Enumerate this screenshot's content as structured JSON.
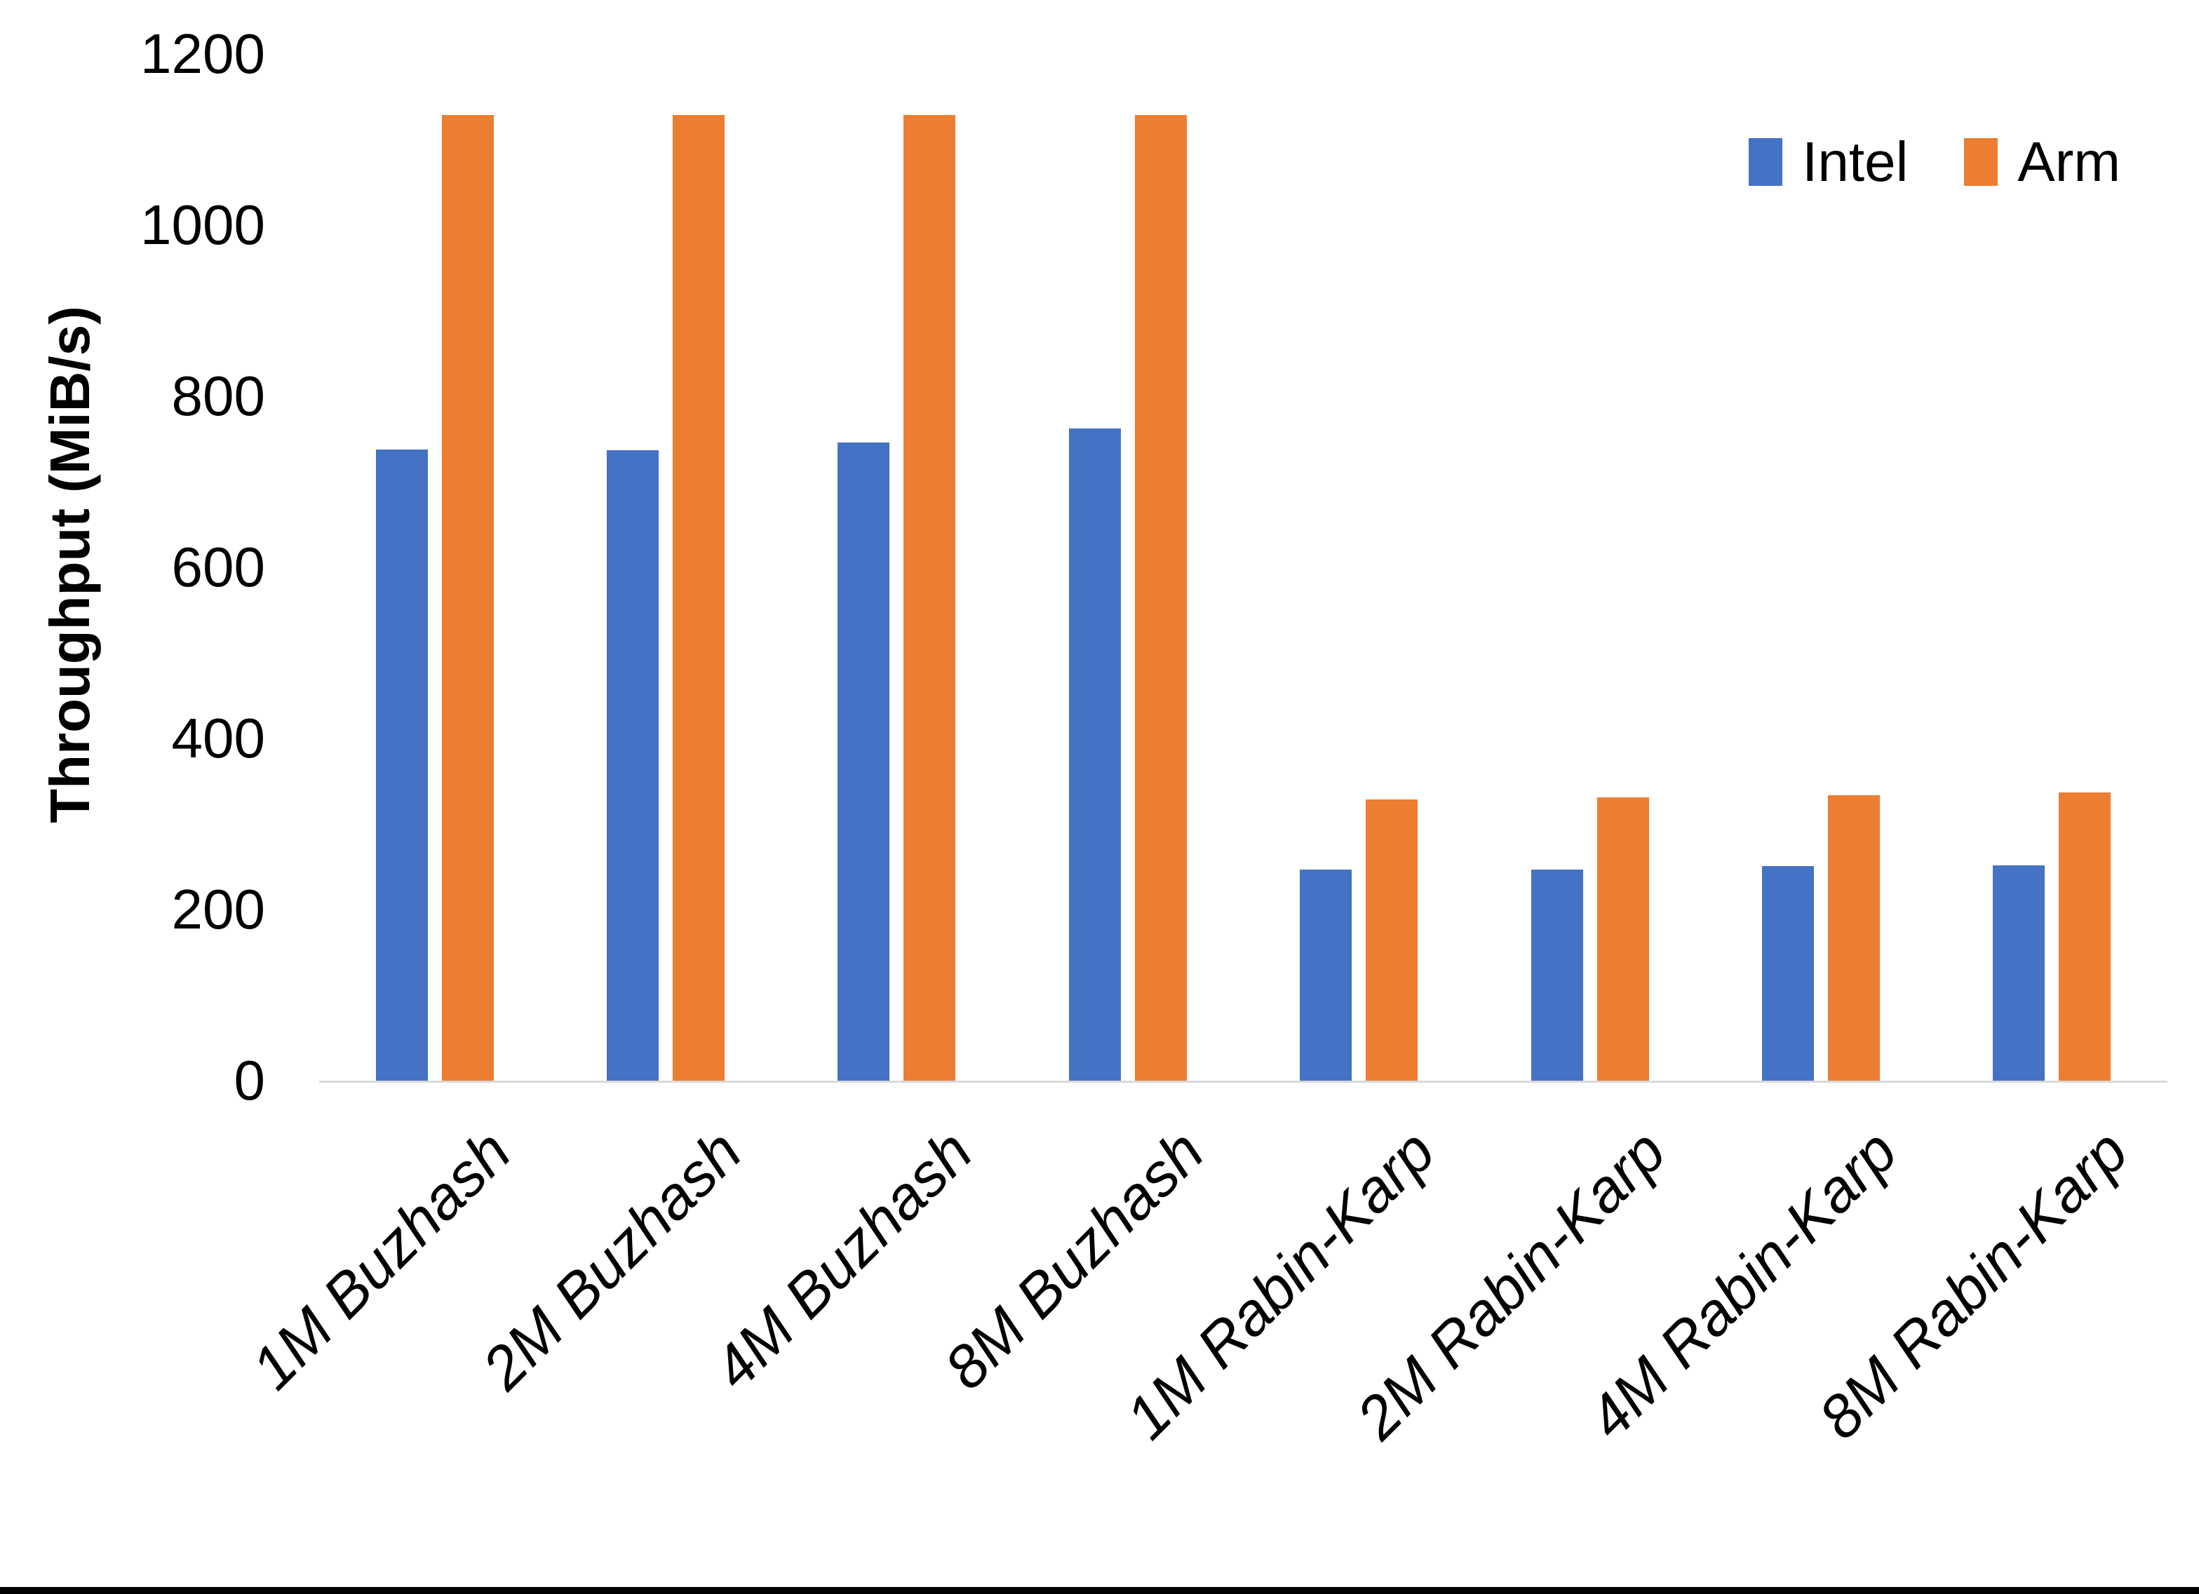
{
  "chart_data": {
    "type": "bar",
    "title": "",
    "ylabel": "Throughput (MiB/s)",
    "xlabel": "",
    "categories": [
      "1M Buzhash",
      "2M Buzhash",
      "4M Buzhash",
      "8M Buzhash",
      "1M Rabin-Karp",
      "2M Rabin-Karp",
      "4M Rabin-Karp",
      "8M Rabin-Karp"
    ],
    "series": [
      {
        "name": "Intel",
        "color": "#4472C4",
        "values": [
          738,
          737,
          746,
          762,
          247,
          247,
          251,
          252
        ]
      },
      {
        "name": "Arm",
        "color": "#ED7D31",
        "values": [
          1129,
          1129,
          1129,
          1129,
          329,
          331,
          334,
          337
        ]
      }
    ],
    "ylim": [
      0,
      1200
    ],
    "yticks": [
      0,
      200,
      400,
      600,
      800,
      1000,
      1200
    ],
    "grid": false,
    "legend_position": "top-right",
    "axis_line_color": "#D9D9D9",
    "background_color": "#FFFFFF"
  }
}
